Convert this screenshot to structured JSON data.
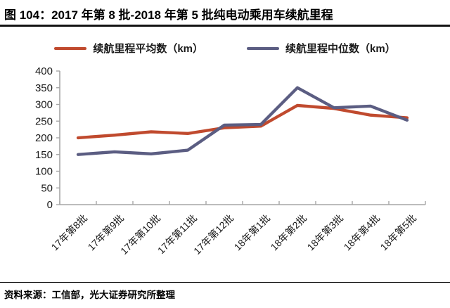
{
  "header": {
    "title": "图 104：2017 年第 8 批-2018 年第 5 批纯电动乘用车续航里程"
  },
  "footer": {
    "source": "资料来源：工信部，光大证券研究所整理"
  },
  "chart_data": {
    "type": "line",
    "title": "2017年第8批-2018年第5批纯电动乘用车续航里程",
    "categories": [
      "17年第8批",
      "17年第9批",
      "17年第10批",
      "17年第11批",
      "17年第12批",
      "18年第1批",
      "18年第2批",
      "18年第3批",
      "18年第4批",
      "18年第5批"
    ],
    "series": [
      {
        "name": "续航里程平均数（km）",
        "color": "#c04a2e",
        "values": [
          200,
          208,
          218,
          213,
          230,
          235,
          297,
          288,
          268,
          260
        ]
      },
      {
        "name": "续航里程中位数（km）",
        "color": "#5b5d82",
        "values": [
          150,
          158,
          152,
          163,
          238,
          240,
          350,
          290,
          295,
          253
        ]
      }
    ],
    "ylim": [
      0,
      400
    ],
    "ytick_step": 50,
    "grid": false,
    "legend_position": "top",
    "axis_color": "#a6a6a6",
    "xlabel": "",
    "ylabel": ""
  }
}
